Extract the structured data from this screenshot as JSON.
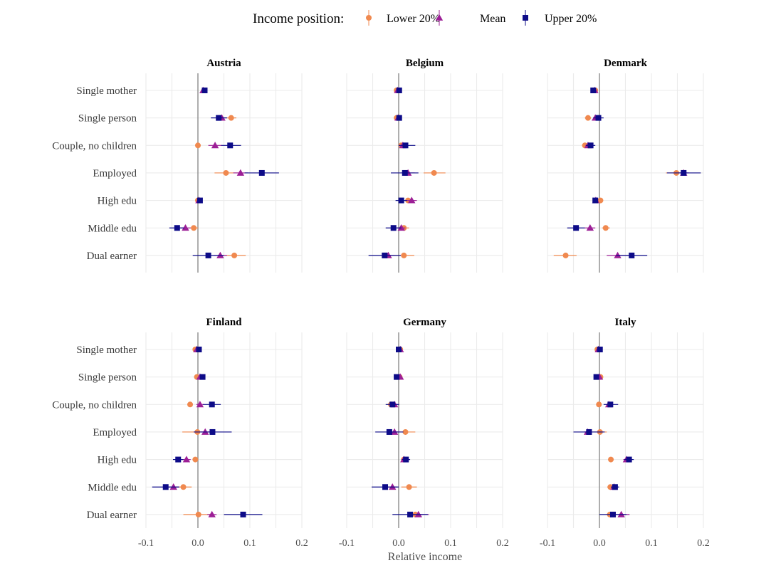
{
  "chart_data": {
    "type": "scatter",
    "legend": {
      "title": "Income position:",
      "position": "top",
      "entries": [
        {
          "name": "Lower 20%",
          "color": "#f0894f",
          "shape": "circle"
        },
        {
          "name": "Mean",
          "color": "#9c1f96",
          "shape": "triangle"
        },
        {
          "name": "Upper 20%",
          "color": "#0d0b88",
          "shape": "square"
        }
      ]
    },
    "xlabel": "Relative income",
    "xlim": [
      -0.1,
      0.2
    ],
    "xticks": [
      -0.1,
      0.0,
      0.1,
      0.2
    ],
    "xtick_labels": [
      "-0.1",
      "0.0",
      "0.1",
      "0.2"
    ],
    "categories": [
      "Single mother",
      "Single person",
      "Couple, no children",
      "Employed",
      "High edu",
      "Middle edu",
      "Dual earner"
    ],
    "grid": true,
    "panels": [
      {
        "title": "Austria",
        "series": [
          {
            "name": "Lower 20%",
            "values": [
              0.012,
              0.064,
              0.0,
              0.054,
              0.0,
              -0.008,
              0.07
            ],
            "ci": [
              [
                0.009,
                0.016
              ],
              [
                0.055,
                0.074
              ],
              [
                -0.003,
                0.003
              ],
              [
                0.032,
                0.077
              ],
              [
                -0.003,
                0.003
              ],
              [
                -0.015,
                0.0
              ],
              [
                0.048,
                0.092
              ]
            ]
          },
          {
            "name": "Mean",
            "values": [
              0.01,
              0.046,
              0.033,
              0.082,
              0.002,
              -0.024,
              0.043
            ],
            "ci": [
              [
                0.006,
                0.014
              ],
              [
                0.04,
                0.052
              ],
              [
                0.02,
                0.046
              ],
              [
                0.068,
                0.096
              ],
              [
                -0.001,
                0.005
              ],
              [
                -0.034,
                -0.014
              ],
              [
                0.03,
                0.056
              ]
            ]
          },
          {
            "name": "Upper 20%",
            "values": [
              0.013,
              0.04,
              0.062,
              0.123,
              0.004,
              -0.04,
              0.02
            ],
            "ci": [
              [
                0.008,
                0.018
              ],
              [
                0.025,
                0.056
              ],
              [
                0.045,
                0.083
              ],
              [
                0.09,
                0.156
              ],
              [
                0.001,
                0.007
              ],
              [
                -0.055,
                -0.026
              ],
              [
                -0.01,
                0.05
              ]
            ]
          }
        ]
      },
      {
        "title": "Belgium",
        "series": [
          {
            "name": "Lower 20%",
            "values": [
              -0.004,
              -0.004,
              0.005,
              0.068,
              0.018,
              0.01,
              0.01
            ],
            "ci": [
              [
                -0.008,
                0.0
              ],
              [
                -0.008,
                0.0
              ],
              [
                0.0,
                0.01
              ],
              [
                0.048,
                0.09
              ],
              [
                0.012,
                0.024
              ],
              [
                0.0,
                0.02
              ],
              [
                -0.01,
                0.03
              ]
            ]
          },
          {
            "name": "Mean",
            "values": [
              -0.002,
              -0.001,
              0.008,
              0.018,
              0.025,
              0.005,
              -0.02
            ],
            "ci": [
              [
                -0.005,
                0.001
              ],
              [
                -0.004,
                0.002
              ],
              [
                0.0,
                0.016
              ],
              [
                0.005,
                0.031
              ],
              [
                0.015,
                0.035
              ],
              [
                -0.003,
                0.013
              ],
              [
                -0.032,
                -0.008
              ]
            ]
          },
          {
            "name": "Upper 20%",
            "values": [
              0.001,
              0.001,
              0.013,
              0.012,
              0.005,
              -0.01,
              -0.027
            ],
            "ci": [
              [
                -0.002,
                0.004
              ],
              [
                -0.002,
                0.004
              ],
              [
                0.0,
                0.032
              ],
              [
                -0.015,
                0.038
              ],
              [
                -0.006,
                0.016
              ],
              [
                -0.025,
                0.005
              ],
              [
                -0.058,
                0.004
              ]
            ]
          }
        ]
      },
      {
        "title": "Denmark",
        "series": [
          {
            "name": "Lower 20%",
            "values": [
              -0.008,
              -0.022,
              -0.028,
              0.148,
              0.002,
              0.012,
              -0.065
            ],
            "ci": [
              [
                -0.011,
                -0.005
              ],
              [
                -0.028,
                -0.016
              ],
              [
                -0.033,
                -0.023
              ],
              [
                0.128,
                0.168
              ],
              [
                -0.001,
                0.005
              ],
              [
                0.005,
                0.02
              ],
              [
                -0.088,
                -0.044
              ]
            ]
          },
          {
            "name": "Mean",
            "values": [
              -0.009,
              -0.008,
              -0.022,
              0.162,
              -0.007,
              -0.018,
              0.035
            ],
            "ci": [
              [
                -0.012,
                -0.006
              ],
              [
                -0.012,
                -0.004
              ],
              [
                -0.027,
                -0.017
              ],
              [
                0.152,
                0.172
              ],
              [
                -0.01,
                -0.004
              ],
              [
                -0.028,
                -0.008
              ],
              [
                0.014,
                0.056
              ]
            ]
          },
          {
            "name": "Upper 20%",
            "values": [
              -0.012,
              -0.002,
              -0.017,
              0.162,
              -0.008,
              -0.045,
              0.062
            ],
            "ci": [
              [
                -0.016,
                -0.008
              ],
              [
                -0.012,
                0.008
              ],
              [
                -0.026,
                -0.008
              ],
              [
                0.13,
                0.195
              ],
              [
                -0.013,
                -0.003
              ],
              [
                -0.062,
                -0.028
              ],
              [
                0.032,
                0.092
              ]
            ]
          }
        ]
      },
      {
        "title": "Finland",
        "series": [
          {
            "name": "Lower 20%",
            "values": [
              -0.005,
              -0.002,
              -0.015,
              -0.001,
              -0.005,
              -0.028,
              0.001
            ],
            "ci": [
              [
                -0.008,
                -0.002
              ],
              [
                -0.005,
                0.001
              ],
              [
                -0.02,
                -0.01
              ],
              [
                -0.03,
                0.03
              ],
              [
                -0.008,
                -0.002
              ],
              [
                -0.045,
                -0.012
              ],
              [
                -0.028,
                0.03
              ]
            ]
          },
          {
            "name": "Mean",
            "values": [
              -0.002,
              0.004,
              0.004,
              0.014,
              -0.022,
              -0.047,
              0.027
            ],
            "ci": [
              [
                -0.005,
                0.001
              ],
              [
                0.001,
                0.007
              ],
              [
                -0.003,
                0.011
              ],
              [
                0.005,
                0.023
              ],
              [
                -0.03,
                -0.014
              ],
              [
                -0.058,
                -0.036
              ],
              [
                0.018,
                0.036
              ]
            ]
          },
          {
            "name": "Upper 20%",
            "values": [
              0.002,
              0.009,
              0.027,
              0.028,
              -0.038,
              -0.062,
              0.087
            ],
            "ci": [
              [
                -0.001,
                0.005
              ],
              [
                0.004,
                0.014
              ],
              [
                0.01,
                0.044
              ],
              [
                -0.008,
                0.065
              ],
              [
                -0.048,
                -0.028
              ],
              [
                -0.088,
                -0.036
              ],
              [
                0.05,
                0.124
              ]
            ]
          }
        ]
      },
      {
        "title": "Germany",
        "series": [
          {
            "name": "Lower 20%",
            "values": [
              0.003,
              0.002,
              -0.015,
              0.013,
              0.01,
              0.02,
              0.032
            ],
            "ci": [
              [
                0.0,
                0.006
              ],
              [
                -0.001,
                0.005
              ],
              [
                -0.023,
                -0.007
              ],
              [
                -0.006,
                0.032
              ],
              [
                0.006,
                0.014
              ],
              [
                0.005,
                0.035
              ],
              [
                0.02,
                0.044
              ]
            ]
          },
          {
            "name": "Mean",
            "values": [
              0.003,
              0.003,
              -0.008,
              -0.008,
              0.01,
              -0.012,
              0.038
            ],
            "ci": [
              [
                0.0,
                0.006
              ],
              [
                0.0,
                0.006
              ],
              [
                -0.015,
                -0.001
              ],
              [
                -0.015,
                -0.001
              ],
              [
                0.006,
                0.014
              ],
              [
                -0.022,
                -0.002
              ],
              [
                0.018,
                0.058
              ]
            ]
          },
          {
            "name": "Upper 20%",
            "values": [
              0.0,
              -0.004,
              -0.012,
              -0.018,
              0.014,
              -0.026,
              0.022
            ],
            "ci": [
              [
                -0.003,
                0.003
              ],
              [
                -0.008,
                0.0
              ],
              [
                -0.025,
                0.001
              ],
              [
                -0.045,
                0.009
              ],
              [
                0.006,
                0.022
              ],
              [
                -0.052,
                0.0
              ],
              [
                -0.012,
                0.056
              ]
            ]
          }
        ]
      },
      {
        "title": "Italy",
        "series": [
          {
            "name": "Lower 20%",
            "values": [
              -0.004,
              0.002,
              -0.001,
              0.001,
              0.022,
              0.021,
              0.02
            ],
            "ci": [
              [
                -0.007,
                -0.001
              ],
              [
                -0.001,
                0.005
              ],
              [
                -0.004,
                0.002
              ],
              [
                -0.012,
                0.014
              ],
              [
                0.019,
                0.025
              ],
              [
                0.015,
                0.027
              ],
              [
                0.012,
                0.028
              ]
            ]
          },
          {
            "name": "Mean",
            "values": [
              -0.002,
              0.0,
              0.018,
              -0.023,
              0.052,
              0.028,
              0.042
            ],
            "ci": [
              [
                -0.005,
                0.001
              ],
              [
                -0.003,
                0.003
              ],
              [
                0.012,
                0.024
              ],
              [
                -0.03,
                -0.016
              ],
              [
                0.046,
                0.058
              ],
              [
                0.022,
                0.034
              ],
              [
                0.03,
                0.058
              ]
            ]
          },
          {
            "name": "Upper 20%",
            "values": [
              0.001,
              -0.006,
              0.021,
              -0.02,
              0.057,
              0.03,
              0.026
            ],
            "ci": [
              [
                -0.002,
                0.004
              ],
              [
                -0.009,
                -0.003
              ],
              [
                0.008,
                0.036
              ],
              [
                -0.05,
                0.01
              ],
              [
                0.048,
                0.066
              ],
              [
                0.022,
                0.038
              ],
              [
                0.0,
                0.052
              ]
            ]
          }
        ]
      }
    ]
  }
}
